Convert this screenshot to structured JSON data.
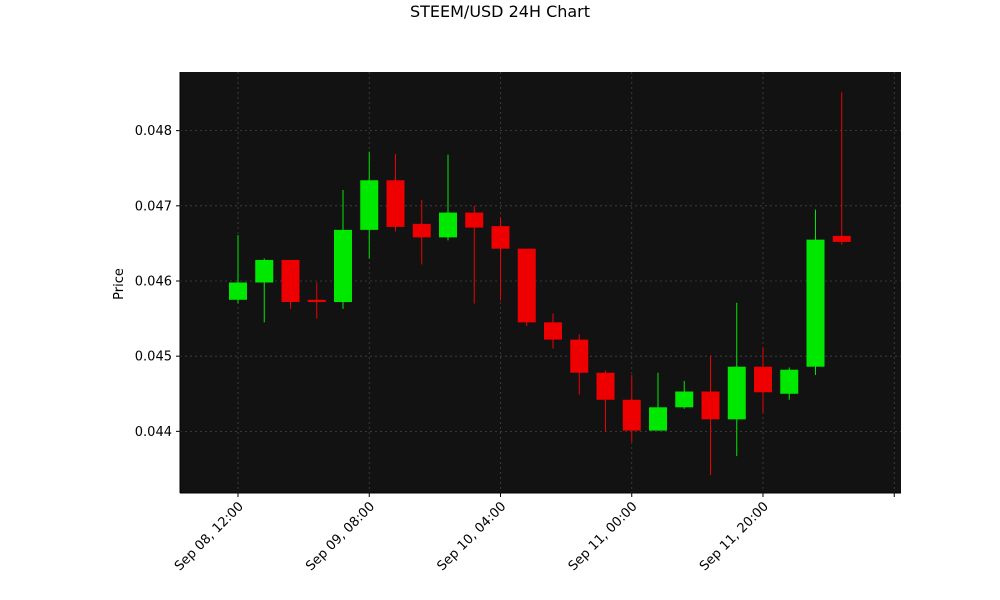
{
  "chart_data": {
    "type": "candlestick",
    "title": "STEEM/USD 24H Chart",
    "ylabel": "Price",
    "xlabel": "",
    "ylim": [
      0.04318,
      0.04878
    ],
    "grid": true,
    "colors": {
      "background": "#121212",
      "up": "#00e800",
      "down": "#ee0000",
      "grid": "#444444"
    },
    "y_ticks": [
      0.044,
      0.045,
      0.046,
      0.047,
      0.048
    ],
    "y_tick_labels": [
      "0.044",
      "0.045",
      "0.046",
      "0.047",
      "0.048"
    ],
    "x_ticks": [
      {
        "index": 0,
        "label": "Sep 08, 12:00"
      },
      {
        "index": 5,
        "label": "Sep 09, 08:00"
      },
      {
        "index": 10,
        "label": "Sep 10, 04:00"
      },
      {
        "index": 15,
        "label": "Sep 11, 00:00"
      },
      {
        "index": 20,
        "label": "Sep 11, 20:00"
      },
      {
        "index": 25,
        "label": ""
      }
    ],
    "candles": [
      {
        "open": 0.04575,
        "high": 0.04661,
        "low": 0.0457,
        "close": 0.04598
      },
      {
        "open": 0.04598,
        "high": 0.0463,
        "low": 0.04545,
        "close": 0.04628
      },
      {
        "open": 0.04628,
        "high": 0.04628,
        "low": 0.04563,
        "close": 0.04572
      },
      {
        "open": 0.04575,
        "high": 0.04598,
        "low": 0.0455,
        "close": 0.04572
      },
      {
        "open": 0.04572,
        "high": 0.04721,
        "low": 0.04563,
        "close": 0.04668
      },
      {
        "open": 0.04668,
        "high": 0.04772,
        "low": 0.0463,
        "close": 0.04734
      },
      {
        "open": 0.04734,
        "high": 0.04769,
        "low": 0.04666,
        "close": 0.04672
      },
      {
        "open": 0.04676,
        "high": 0.04708,
        "low": 0.04622,
        "close": 0.04658
      },
      {
        "open": 0.04658,
        "high": 0.04768,
        "low": 0.04654,
        "close": 0.04691
      },
      {
        "open": 0.04691,
        "high": 0.047,
        "low": 0.0457,
        "close": 0.04671
      },
      {
        "open": 0.04673,
        "high": 0.04685,
        "low": 0.04574,
        "close": 0.04643
      },
      {
        "open": 0.04643,
        "high": 0.04643,
        "low": 0.0454,
        "close": 0.04545
      },
      {
        "open": 0.04545,
        "high": 0.04557,
        "low": 0.0451,
        "close": 0.04522
      },
      {
        "open": 0.04522,
        "high": 0.04529,
        "low": 0.04449,
        "close": 0.04478
      },
      {
        "open": 0.04478,
        "high": 0.04481,
        "low": 0.04399,
        "close": 0.04442
      },
      {
        "open": 0.04442,
        "high": 0.04475,
        "low": 0.04386,
        "close": 0.04401
      },
      {
        "open": 0.04401,
        "high": 0.04478,
        "low": 0.04401,
        "close": 0.04432
      },
      {
        "open": 0.04432,
        "high": 0.04467,
        "low": 0.0443,
        "close": 0.04453
      },
      {
        "open": 0.04453,
        "high": 0.04501,
        "low": 0.04342,
        "close": 0.04416
      },
      {
        "open": 0.04416,
        "high": 0.04571,
        "low": 0.04367,
        "close": 0.04486
      },
      {
        "open": 0.04486,
        "high": 0.04512,
        "low": 0.04424,
        "close": 0.04452
      },
      {
        "open": 0.0445,
        "high": 0.04485,
        "low": 0.04442,
        "close": 0.04482
      },
      {
        "open": 0.04486,
        "high": 0.04695,
        "low": 0.04475,
        "close": 0.04655
      },
      {
        "open": 0.0466,
        "high": 0.04851,
        "low": 0.04648,
        "close": 0.04652
      }
    ]
  }
}
